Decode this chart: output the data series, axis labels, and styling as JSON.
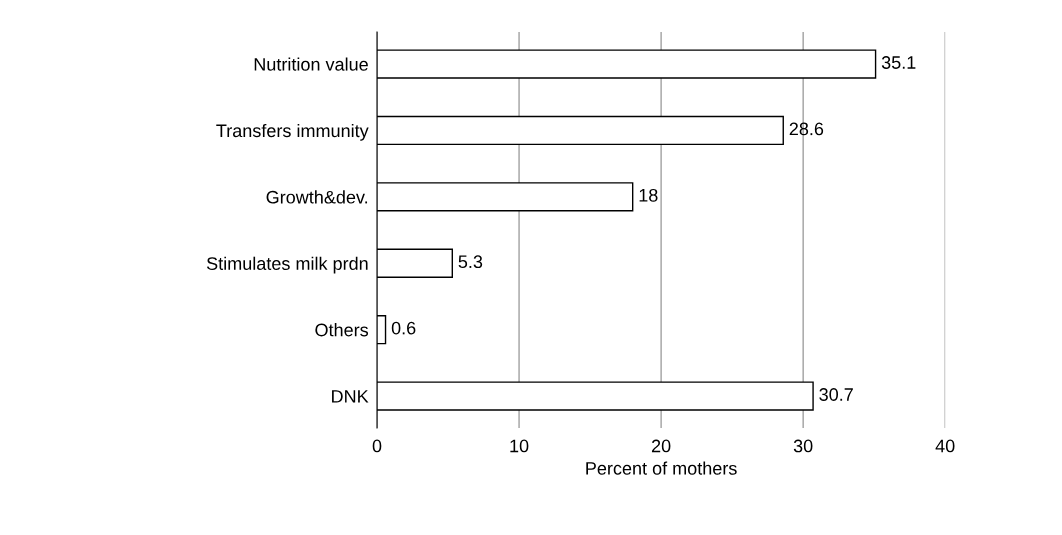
{
  "chart_data": {
    "type": "bar",
    "orientation": "horizontal",
    "xlabel": "Percent of mothers",
    "categories": [
      "Nutrition value",
      "Transfers immunity",
      "Growth&dev.",
      "Stimulates milk prdn",
      "Others",
      "DNK"
    ],
    "values": [
      35.1,
      28.6,
      18,
      5.3,
      0.6,
      30.7
    ],
    "color": "#ffffff",
    "data_labels": true,
    "xlim": [
      0,
      40
    ],
    "xticks": [
      0,
      10,
      20,
      30,
      40
    ],
    "grid": "x",
    "legend": false
  }
}
